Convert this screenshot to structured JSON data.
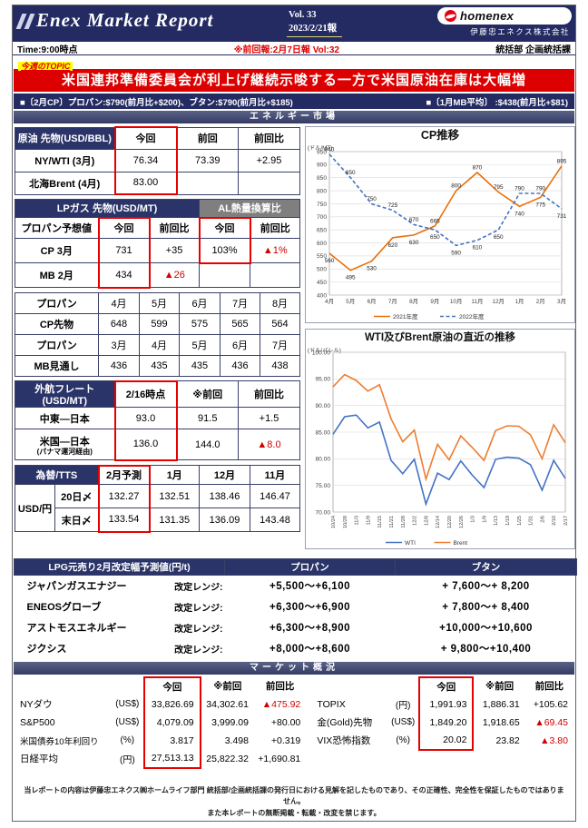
{
  "header": {
    "title": "Enex Market Report",
    "vol": "Vol. 33",
    "date": "2023/2/21報",
    "brand": "homenex",
    "company": "伊藤忠エネクス株式会社"
  },
  "infobar": {
    "time": "Time:9:00時点",
    "prev": "※前回報:2月7日報 Vol:32",
    "dept": "統括部 企画統括課"
  },
  "topic": {
    "label": "今週のTOPIC",
    "headline": "米国連邦準備委員会が利上げ継続示唆する一方で米国原油在庫は大幅増"
  },
  "cp_strip": {
    "left": "■〔2月CP〕プロパン:$790(前月比+$200)、ブタン:$790(前月比+$185)",
    "right": "■〔1月MB平均〕 :$438(前月比+$81)"
  },
  "sections": {
    "energy": "エネルギー市場",
    "market": "マーケット概況"
  },
  "crude": {
    "title": "原油 先物(USD/BBL)",
    "h": [
      "今回",
      "前回",
      "前回比"
    ],
    "rows": [
      [
        "NY/WTI (3月)",
        "76.34",
        "73.39",
        "+2.95"
      ],
      [
        "北海Brent (4月)",
        "83.00",
        "",
        ""
      ]
    ]
  },
  "lp": {
    "title": "LPガス 先物(USD/MT)",
    "title2": "AL熱量換算比",
    "sub": [
      "プロパン予想値",
      "今回",
      "前回比",
      "今回",
      "前回比"
    ],
    "rows": [
      [
        "CP 3月",
        "731",
        "+35",
        "103%",
        "▲1%"
      ],
      [
        "MB 2月",
        "434",
        "▲26",
        "",
        ""
      ]
    ]
  },
  "momo": {
    "rows": [
      [
        "プロパン",
        "4月",
        "5月",
        "6月",
        "7月",
        "8月"
      ],
      [
        "CP先物",
        "648",
        "599",
        "575",
        "565",
        "564"
      ],
      [
        "プロパン",
        "3月",
        "4月",
        "5月",
        "6月",
        "7月"
      ],
      [
        "MB見通し",
        "436",
        "435",
        "435",
        "436",
        "438"
      ]
    ]
  },
  "freight": {
    "title": "外航フレート (USD/MT)",
    "h": [
      "2/16時点",
      "※前回",
      "前回比"
    ],
    "rows": [
      {
        "label": "中東―日本",
        "label2": "",
        "v": [
          "93.0",
          "91.5",
          "+1.5"
        ]
      },
      {
        "label": "米国―日本",
        "label2": "(パナマ運河経由)",
        "v": [
          "136.0",
          "144.0",
          "▲8.0"
        ]
      }
    ]
  },
  "fx": {
    "title": "為替/TTS",
    "h": [
      "2月予測",
      "1月",
      "12月",
      "11月"
    ],
    "group": "USD/円",
    "rows": [
      [
        "20日〆",
        "132.27",
        "132.51",
        "138.46",
        "146.47"
      ],
      [
        "末日〆",
        "133.54",
        "131.35",
        "136.09",
        "143.48"
      ]
    ]
  },
  "lpg": {
    "title": "LPG元売り2月改定幅予測値(円/t)",
    "h_propane": "プロパン",
    "h_butane": "ブタン",
    "range_label": "改定レンジ:",
    "rows": [
      [
        "ジャパンガスエナジー",
        "+5,500〜+6,100",
        "+ 7,600〜+ 8,200"
      ],
      [
        "ENEOSグローブ",
        "+6,300〜+6,900",
        "+ 7,800〜+ 8,400"
      ],
      [
        "アストモスエネルギー",
        "+6,300〜+8,900",
        "+10,000〜+10,600"
      ],
      [
        "ジクシス",
        "+8,000〜+8,600",
        "+ 9,800〜+10,400"
      ]
    ]
  },
  "market": {
    "h": [
      "今回",
      "※前回",
      "前回比"
    ],
    "left": [
      [
        "NYダウ",
        "(US$)",
        "33,826.69",
        "34,302.61",
        "▲475.92"
      ],
      [
        "S&P500",
        "(US$)",
        "4,079.09",
        "3,999.09",
        "+80.00"
      ],
      [
        "米国債券10年利回り",
        "(%)",
        "3.817",
        "3.498",
        "+0.319"
      ],
      [
        "日経平均",
        "(円)",
        "27,513.13",
        "25,822.32",
        "+1,690.81"
      ]
    ],
    "right": [
      [
        "TOPIX",
        "(円)",
        "1,991.93",
        "1,886.31",
        "+105.62"
      ],
      [
        "金(Gold)先物",
        "(US$)",
        "1,849.20",
        "1,918.65",
        "▲69.45"
      ],
      [
        "VIX恐怖指数",
        "(%)",
        "20.02",
        "23.82",
        "▲3.80"
      ]
    ]
  },
  "footer": {
    "line1": "当レポートの内容は伊藤忠エネクス㈱ホームライフ部門 統括部/企画統括課の発行日における見解を記したものであり、その正確性、完全性を保証したものではありません。",
    "line2": "また本レポートの無断掲載・転載・改変を禁じます。"
  },
  "chart_data": [
    {
      "type": "line",
      "title": "CP推移",
      "ylabel": "(ドル/MT)",
      "ylim": [
        400,
        950
      ],
      "ystep": 50,
      "ydec": 0,
      "grid": true,
      "legend_pos": "bottom",
      "point_labels": true,
      "categories": [
        "4月",
        "5月",
        "6月",
        "7月",
        "8月",
        "9月",
        "10月",
        "11月",
        "12月",
        "1月",
        "2月",
        "3月"
      ],
      "series": [
        {
          "name": "2021年度",
          "color": "#e8700a",
          "dash": "",
          "values": [
            560,
            495,
            530,
            620,
            630,
            665,
            800,
            870,
            795,
            740,
            775,
            895
          ]
        },
        {
          "name": "2022年度",
          "color": "#4472c4",
          "dash": "4,2.5",
          "values": [
            940,
            850,
            750,
            725,
            670,
            650,
            590,
            610,
            650,
            790,
            790,
            731
          ]
        }
      ]
    },
    {
      "type": "line",
      "title": "WTI及びBrent原油の直近の推移",
      "ylabel": "(ドル/バレル)",
      "ylim": [
        70,
        100
      ],
      "ystep": 5,
      "ydec": 2,
      "grid": true,
      "legend_pos": "bottom",
      "point_labels": false,
      "rot_x": true,
      "categories": [
        "10/24",
        "10/28",
        "11/3",
        "11/9",
        "11/15",
        "11/21",
        "11/28",
        "12/2",
        "12/8",
        "12/14",
        "12/20",
        "12/26",
        "1/3",
        "1/9",
        "1/13",
        "1/19",
        "1/25",
        "1/31",
        "2/6",
        "2/10",
        "2/17"
      ],
      "series": [
        {
          "name": "WTI",
          "color": "#4472c4",
          "dash": "",
          "values": [
            84.6,
            87.9,
            88.2,
            85.8,
            86.9,
            79.7,
            77.2,
            79.9,
            71.5,
            77.3,
            76.1,
            79.6,
            76.9,
            74.6,
            79.9,
            80.3,
            80.1,
            78.9,
            74.1,
            79.7,
            76.3
          ]
        },
        {
          "name": "Brent",
          "color": "#ed7d31",
          "dash": "",
          "values": [
            93.5,
            95.8,
            94.7,
            92.7,
            93.9,
            87.5,
            83.2,
            85.4,
            76.2,
            82.7,
            79.8,
            84.3,
            82.1,
            79.7,
            85.3,
            86.2,
            86.1,
            84.5,
            80.0,
            86.4,
            83.0
          ]
        }
      ]
    }
  ]
}
